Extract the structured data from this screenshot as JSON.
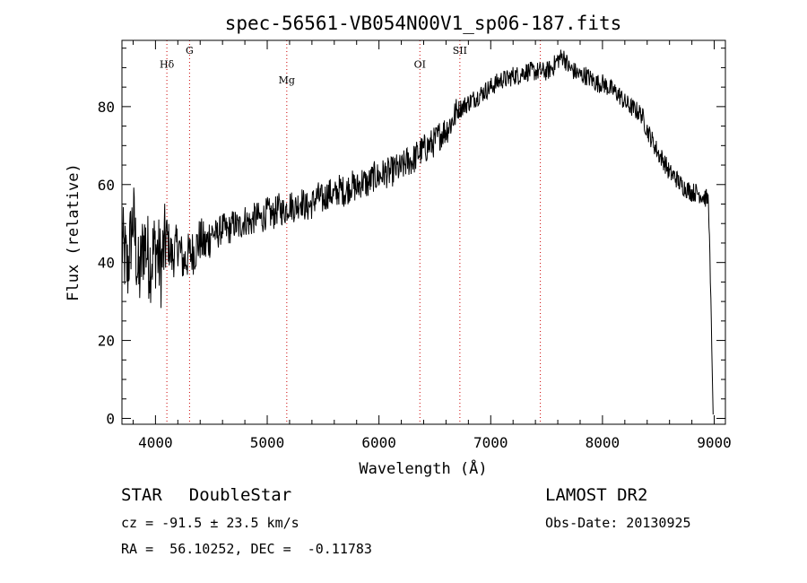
{
  "chart_data": {
    "type": "line",
    "title": "spec-56561-VB054N00V1_sp06-187.fits",
    "xlabel": "Wavelength (Å)",
    "ylabel": "Flux (relative)",
    "xlim": [
      3700,
      9100
    ],
    "ylim": [
      -1.5,
      97
    ],
    "xticks": [
      4000,
      5000,
      6000,
      7000,
      8000,
      9000
    ],
    "xtick_labels": [
      "4000",
      "5000",
      "6000",
      "7000",
      "8000",
      "9000"
    ],
    "yticks": [
      0,
      20,
      40,
      60,
      80
    ],
    "ytick_labels": [
      "0",
      "20",
      "40",
      "60",
      "80"
    ],
    "grid": false,
    "lines": [
      {
        "label": "Hδ",
        "x": 4102,
        "label_y": 90
      },
      {
        "label": "G",
        "x": 4305,
        "label_y": 93.5
      },
      {
        "label": "Mg",
        "x": 5175,
        "label_y": 86
      },
      {
        "label": "OI",
        "x": 6366,
        "label_y": 90
      },
      {
        "label": "SII",
        "x": 6724,
        "label_y": 93.5
      },
      {
        "label": "",
        "x": 7444,
        "label_y": 0
      }
    ],
    "series": [
      {
        "x": [
          3700,
          3750,
          3800,
          3850,
          3900,
          3950,
          4000,
          4050,
          4100,
          4150,
          4200,
          4250,
          4300,
          4350,
          4400,
          4450,
          4500,
          4550,
          4600,
          4650,
          4700,
          4750,
          4800,
          4850,
          4900,
          4950,
          5000,
          5050,
          5100,
          5150,
          5200,
          5250,
          5300,
          5350,
          5400,
          5450,
          5500,
          5550,
          5600,
          5650,
          5700,
          5750,
          5800,
          5850,
          5900,
          5950,
          6000,
          6050,
          6100,
          6150,
          6200,
          6250,
          6300,
          6350,
          6400,
          6450,
          6500,
          6550,
          6600,
          6650,
          6700,
          6750,
          6800,
          6850,
          6900,
          6950,
          7000,
          7050,
          7100,
          7150,
          7200,
          7250,
          7300,
          7350,
          7400,
          7450,
          7500,
          7550,
          7600,
          7650,
          7700,
          7750,
          7800,
          7850,
          7900,
          7950,
          8000,
          8050,
          8100,
          8150,
          8200,
          8250,
          8300,
          8350,
          8400,
          8450,
          8500,
          8550,
          8600,
          8650,
          8700,
          8750,
          8800,
          8850,
          8900,
          8950,
          8990
        ],
        "y": [
          45,
          38,
          52,
          35,
          46,
          40,
          44,
          39,
          47,
          41,
          45,
          40,
          42,
          43,
          46,
          44,
          48,
          47,
          49,
          48,
          50,
          49,
          51,
          50,
          52,
          51,
          53,
          52,
          54,
          53,
          55,
          54,
          56,
          54,
          55,
          57,
          56,
          58,
          57,
          59,
          58,
          60,
          59,
          61,
          60,
          62,
          62,
          63,
          63,
          64,
          64,
          66,
          66,
          68,
          69,
          70,
          71,
          73,
          74,
          76,
          79,
          80,
          81,
          82,
          83,
          84,
          85,
          86,
          87,
          87,
          88,
          88,
          89,
          89,
          89,
          89,
          89,
          90,
          92,
          93,
          90,
          89,
          88,
          88,
          87,
          86,
          86,
          85,
          84,
          83,
          81,
          80,
          79,
          78,
          74,
          71,
          68,
          66,
          63,
          62,
          60,
          59,
          58,
          58,
          57,
          56,
          1
        ]
      }
    ]
  },
  "info": {
    "obj_class": "STAR",
    "obj_subclass": "DoubleStar",
    "survey": "LAMOST DR2",
    "cz": "cz = -91.5 ± 23.5 km/s",
    "obs_date": "Obs-Date: 20130925",
    "radec": "RA =  56.10252, DEC =  -0.11783"
  }
}
